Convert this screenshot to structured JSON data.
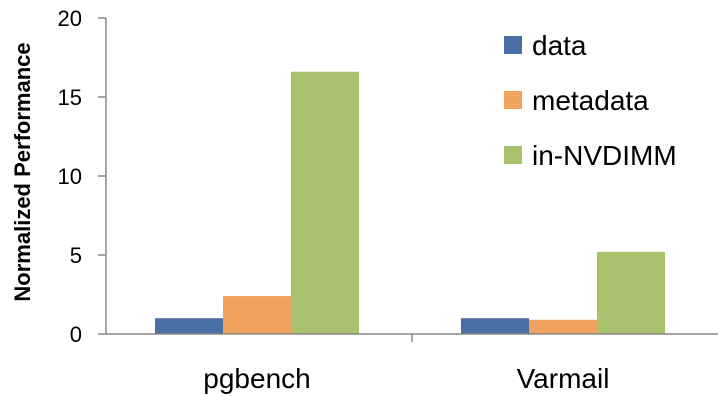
{
  "chart_data": {
    "type": "bar",
    "categories": [
      "pgbench",
      "Varmail"
    ],
    "series": [
      {
        "name": "data",
        "values": [
          1.0,
          1.0
        ],
        "color": "#4a6fa5"
      },
      {
        "name": "metadata",
        "values": [
          2.4,
          0.9
        ],
        "color": "#f0a35e"
      },
      {
        "name": "in-NVDIMM",
        "values": [
          16.6,
          5.2
        ],
        "color": "#a9c26e"
      }
    ],
    "ylabel": "Normalized Performance",
    "xlabel": "",
    "ylim": [
      0,
      20
    ],
    "yticks": [
      0,
      5,
      10,
      15,
      20
    ],
    "grid": false,
    "legend_position": "top-right"
  }
}
